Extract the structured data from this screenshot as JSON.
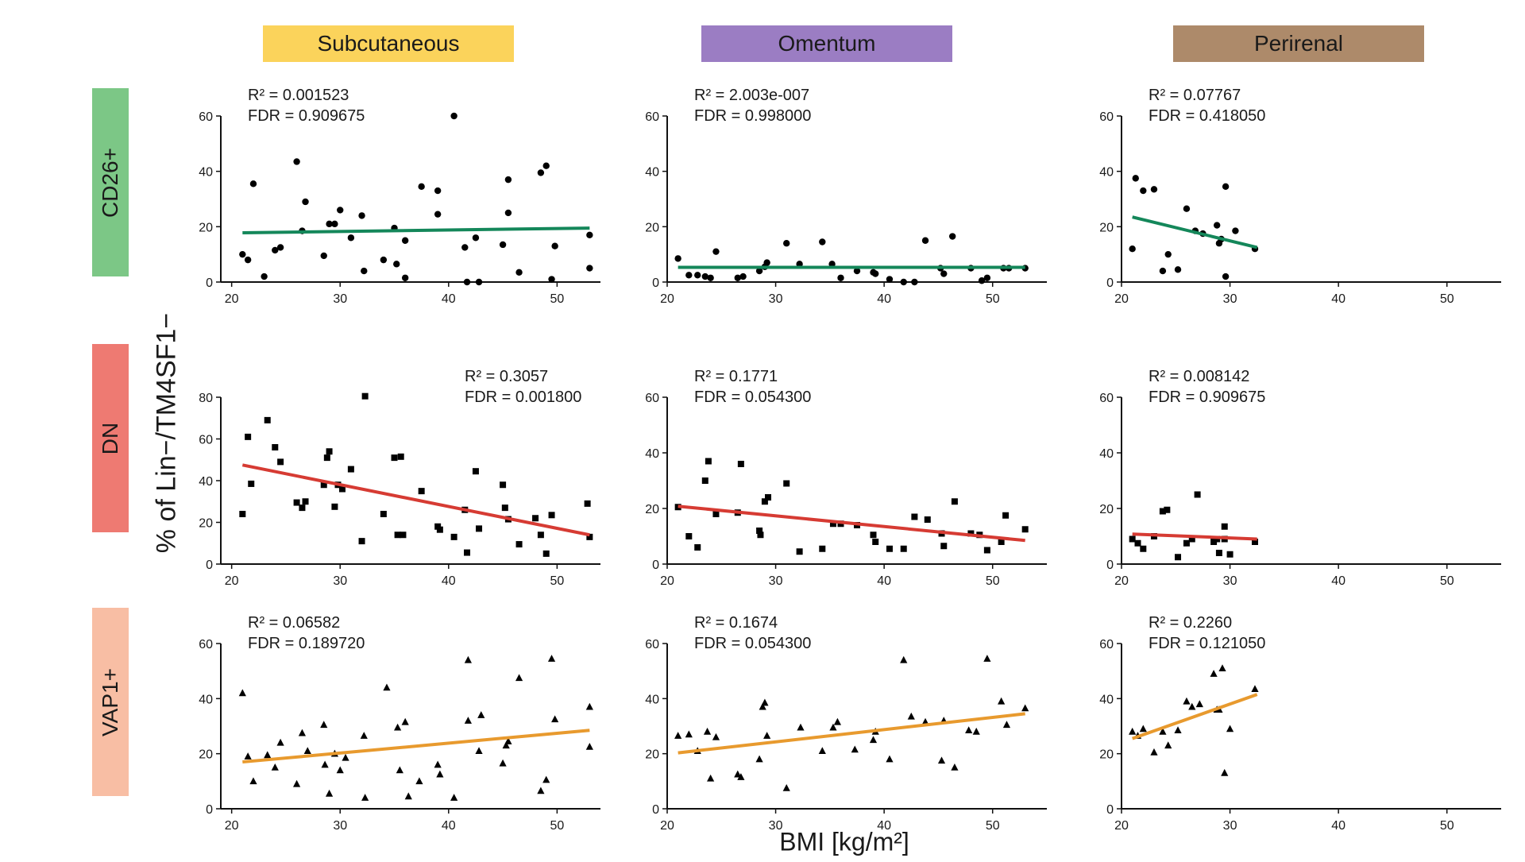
{
  "columns": [
    {
      "label": "Subcutaneous",
      "color": "#fbd35b"
    },
    {
      "label": "Omentum",
      "color": "#9b7dc3"
    },
    {
      "label": "Perirenal",
      "color": "#ad8a6a"
    }
  ],
  "rows": [
    {
      "label": "CD26+",
      "color": "#7cc786",
      "marker": "circle",
      "line_color": "#14875a"
    },
    {
      "label": "DN",
      "color": "#ee7a72",
      "marker": "square",
      "line_color": "#d63b33"
    },
    {
      "label": "VAP1+",
      "color": "#f8bea4",
      "marker": "triangle",
      "line_color": "#e89a2e"
    }
  ],
  "ylabel": "% of Lin−/TM4SF1−",
  "xlabel": "BMI [kg/m²]",
  "chart_data": [
    {
      "type": "scatter",
      "row": "CD26+",
      "column": "Subcutaneous",
      "r2": "R² = 0.001523",
      "fdr": "FDR = 0.909675",
      "stats_pos": "top-left",
      "xlim": [
        19,
        54
      ],
      "xticks": [
        20,
        30,
        40,
        50
      ],
      "ylim": [
        0,
        60
      ],
      "yticks": [
        0,
        20,
        40,
        60
      ],
      "fit": [
        [
          21,
          17.8
        ],
        [
          53,
          19.5
        ]
      ],
      "points": [
        [
          21,
          10
        ],
        [
          21.5,
          8
        ],
        [
          22,
          35.5
        ],
        [
          23,
          2
        ],
        [
          24,
          11.5
        ],
        [
          24.5,
          12.5
        ],
        [
          26,
          43.5
        ],
        [
          26.5,
          18.5
        ],
        [
          26.8,
          29
        ],
        [
          28.5,
          9.5
        ],
        [
          29,
          21
        ],
        [
          29.5,
          21
        ],
        [
          30,
          26
        ],
        [
          31,
          16
        ],
        [
          32,
          24
        ],
        [
          32.2,
          4
        ],
        [
          34,
          8
        ],
        [
          35,
          19.5
        ],
        [
          35.2,
          6.5
        ],
        [
          36,
          1.5
        ],
        [
          36,
          15
        ],
        [
          37.5,
          34.5
        ],
        [
          39,
          33
        ],
        [
          39,
          24.5
        ],
        [
          40.5,
          60
        ],
        [
          41.5,
          12.5
        ],
        [
          41.7,
          0
        ],
        [
          42.5,
          16
        ],
        [
          42.8,
          0
        ],
        [
          45,
          13.5
        ],
        [
          45.5,
          25
        ],
        [
          45.5,
          37
        ],
        [
          46.5,
          3.5
        ],
        [
          48.5,
          39.5
        ],
        [
          49,
          42
        ],
        [
          49.5,
          1
        ],
        [
          49.8,
          13
        ],
        [
          53,
          17
        ],
        [
          53,
          5
        ]
      ]
    },
    {
      "type": "scatter",
      "row": "CD26+",
      "column": "Omentum",
      "r2": "R² = 2.003e-007",
      "fdr": "FDR = 0.998000",
      "stats_pos": "top-left",
      "xlim": [
        20,
        55
      ],
      "xticks": [
        20,
        30,
        40,
        50
      ],
      "ylim": [
        0,
        60
      ],
      "yticks": [
        0,
        20,
        40,
        60
      ],
      "fit": [
        [
          21,
          5.3
        ],
        [
          53,
          5.3
        ]
      ],
      "points": [
        [
          21,
          8.5
        ],
        [
          22,
          2.5
        ],
        [
          22.8,
          2.5
        ],
        [
          23.5,
          2
        ],
        [
          24,
          1.5
        ],
        [
          24.5,
          11
        ],
        [
          26.5,
          1.5
        ],
        [
          27,
          2
        ],
        [
          28.5,
          4
        ],
        [
          29,
          5.5
        ],
        [
          29.2,
          7
        ],
        [
          31,
          14
        ],
        [
          32.2,
          6.5
        ],
        [
          34.3,
          14.5
        ],
        [
          35.2,
          6.5
        ],
        [
          36,
          1.5
        ],
        [
          37.5,
          4
        ],
        [
          39,
          3.5
        ],
        [
          39.2,
          3
        ],
        [
          40.5,
          1
        ],
        [
          41.8,
          0
        ],
        [
          42.8,
          0
        ],
        [
          43.8,
          15
        ],
        [
          45.2,
          5
        ],
        [
          45.5,
          3
        ],
        [
          46.3,
          16.5
        ],
        [
          48,
          5
        ],
        [
          49,
          0.5
        ],
        [
          49.5,
          1.5
        ],
        [
          51,
          5
        ],
        [
          51.5,
          5
        ],
        [
          53,
          5
        ]
      ]
    },
    {
      "type": "scatter",
      "row": "CD26+",
      "column": "Perirenal",
      "r2": "R² = 0.07767",
      "fdr": "FDR = 0.418050",
      "stats_pos": "top-left",
      "xlim": [
        20,
        55
      ],
      "xticks": [
        20,
        30,
        40,
        50
      ],
      "ylim": [
        0,
        60
      ],
      "yticks": [
        0,
        20,
        40,
        60
      ],
      "fit": [
        [
          21,
          23.5
        ],
        [
          32.5,
          12.5
        ]
      ],
      "points": [
        [
          21,
          12
        ],
        [
          21.3,
          37.5
        ],
        [
          22,
          33
        ],
        [
          23,
          33.5
        ],
        [
          23.8,
          4
        ],
        [
          24.3,
          10
        ],
        [
          25.2,
          4.5
        ],
        [
          26,
          26.5
        ],
        [
          26.8,
          18.5
        ],
        [
          27.5,
          17.5
        ],
        [
          28.8,
          20.5
        ],
        [
          29,
          14
        ],
        [
          29.2,
          15.5
        ],
        [
          29.6,
          34.5
        ],
        [
          29.6,
          2
        ],
        [
          30.5,
          18.5
        ],
        [
          32.3,
          12
        ]
      ]
    },
    {
      "type": "scatter",
      "row": "DN",
      "column": "Subcutaneous",
      "r2": "R² = 0.3057",
      "fdr": "FDR = 0.001800",
      "stats_pos": "top-right",
      "xlim": [
        19,
        54
      ],
      "xticks": [
        20,
        30,
        40,
        50
      ],
      "ylim": [
        0,
        80
      ],
      "yticks": [
        0,
        20,
        40,
        60,
        80
      ],
      "fit": [
        [
          21,
          47.5
        ],
        [
          53,
          14
        ]
      ],
      "points": [
        [
          21,
          24
        ],
        [
          21.5,
          61
        ],
        [
          21.8,
          38.5
        ],
        [
          23.3,
          69
        ],
        [
          24,
          56
        ],
        [
          24.5,
          49
        ],
        [
          26,
          29.5
        ],
        [
          26.5,
          27
        ],
        [
          26.8,
          30
        ],
        [
          28.5,
          38
        ],
        [
          28.8,
          51
        ],
        [
          29,
          54
        ],
        [
          29.5,
          27.5
        ],
        [
          29.8,
          38
        ],
        [
          30.2,
          36
        ],
        [
          31,
          45.5
        ],
        [
          32,
          11
        ],
        [
          32.3,
          80.5
        ],
        [
          34,
          24
        ],
        [
          35,
          51
        ],
        [
          35.3,
          14
        ],
        [
          35.6,
          51.5
        ],
        [
          35.8,
          14
        ],
        [
          37.5,
          35
        ],
        [
          39,
          18
        ],
        [
          39.2,
          16.5
        ],
        [
          40.5,
          13
        ],
        [
          41.5,
          26
        ],
        [
          41.7,
          5.5
        ],
        [
          42.5,
          44.5
        ],
        [
          42.8,
          17
        ],
        [
          45,
          38
        ],
        [
          45.2,
          27
        ],
        [
          45.5,
          21.5
        ],
        [
          46.5,
          9.5
        ],
        [
          48,
          22
        ],
        [
          48.5,
          14
        ],
        [
          49,
          5
        ],
        [
          49.5,
          23.5
        ],
        [
          52.8,
          29
        ],
        [
          53,
          13
        ]
      ]
    },
    {
      "type": "scatter",
      "row": "DN",
      "column": "Omentum",
      "r2": "R² = 0.1771",
      "fdr": "FDR = 0.054300",
      "stats_pos": "top-left",
      "xlim": [
        20,
        55
      ],
      "xticks": [
        20,
        30,
        40,
        50
      ],
      "ylim": [
        0,
        60
      ],
      "yticks": [
        0,
        20,
        40,
        60
      ],
      "fit": [
        [
          21,
          20.8
        ],
        [
          53,
          8.5
        ]
      ],
      "points": [
        [
          21,
          20.5
        ],
        [
          22,
          10
        ],
        [
          22.8,
          6
        ],
        [
          23.5,
          30
        ],
        [
          23.8,
          37
        ],
        [
          24.5,
          18
        ],
        [
          26.5,
          18.5
        ],
        [
          26.8,
          36
        ],
        [
          28.5,
          12
        ],
        [
          28.6,
          10.5
        ],
        [
          29,
          22.5
        ],
        [
          29.3,
          24
        ],
        [
          31,
          29
        ],
        [
          32.2,
          4.5
        ],
        [
          34.3,
          5.5
        ],
        [
          35.3,
          14.5
        ],
        [
          36,
          14.5
        ],
        [
          37.5,
          14
        ],
        [
          39,
          10.5
        ],
        [
          39.2,
          8
        ],
        [
          40.5,
          5.5
        ],
        [
          41.8,
          5.5
        ],
        [
          42.8,
          17
        ],
        [
          44,
          16
        ],
        [
          45.3,
          11
        ],
        [
          45.5,
          6.5
        ],
        [
          46.5,
          22.5
        ],
        [
          48,
          11
        ],
        [
          48.8,
          10.5
        ],
        [
          49.5,
          5
        ],
        [
          50.8,
          8
        ],
        [
          51.2,
          17.5
        ],
        [
          53,
          12.5
        ]
      ]
    },
    {
      "type": "scatter",
      "row": "DN",
      "column": "Perirenal",
      "r2": "R² = 0.008142",
      "fdr": "FDR = 0.909675",
      "stats_pos": "top-left",
      "xlim": [
        20,
        55
      ],
      "xticks": [
        20,
        30,
        40,
        50
      ],
      "ylim": [
        0,
        60
      ],
      "yticks": [
        0,
        20,
        40,
        60
      ],
      "fit": [
        [
          21,
          10.8
        ],
        [
          32.5,
          9
        ]
      ],
      "points": [
        [
          21,
          9
        ],
        [
          21.5,
          7.5
        ],
        [
          22,
          5.5
        ],
        [
          23,
          10
        ],
        [
          23.8,
          19
        ],
        [
          24.2,
          19.5
        ],
        [
          25.2,
          2.5
        ],
        [
          26,
          7.5
        ],
        [
          26.5,
          9
        ],
        [
          27,
          25
        ],
        [
          28.5,
          8
        ],
        [
          28.8,
          9
        ],
        [
          29,
          4
        ],
        [
          29.5,
          13.5
        ],
        [
          29.5,
          9
        ],
        [
          30,
          3.5
        ],
        [
          32.3,
          8
        ]
      ]
    },
    {
      "type": "scatter",
      "row": "VAP1+",
      "column": "Subcutaneous",
      "r2": "R² = 0.06582",
      "fdr": "FDR = 0.189720",
      "stats_pos": "top-left",
      "xlim": [
        19,
        54
      ],
      "xticks": [
        20,
        30,
        40,
        50
      ],
      "ylim": [
        0,
        60
      ],
      "yticks": [
        0,
        20,
        40,
        60
      ],
      "fit": [
        [
          21,
          17
        ],
        [
          53,
          28.5
        ]
      ],
      "points": [
        [
          21,
          42
        ],
        [
          21.5,
          19
        ],
        [
          22,
          10
        ],
        [
          23.3,
          19.5
        ],
        [
          24,
          15
        ],
        [
          24.5,
          24
        ],
        [
          26,
          9
        ],
        [
          26.5,
          27.5
        ],
        [
          27,
          21
        ],
        [
          28.5,
          30.5
        ],
        [
          28.6,
          16
        ],
        [
          29,
          5.5
        ],
        [
          29.5,
          20
        ],
        [
          30,
          14
        ],
        [
          30.5,
          18.5
        ],
        [
          32.2,
          26.5
        ],
        [
          32.3,
          4
        ],
        [
          34.3,
          44
        ],
        [
          35.3,
          29.5
        ],
        [
          35.5,
          14
        ],
        [
          36,
          31.5
        ],
        [
          36.3,
          4.5
        ],
        [
          37.3,
          10
        ],
        [
          39,
          16
        ],
        [
          39.2,
          12.5
        ],
        [
          40.5,
          4
        ],
        [
          41.8,
          54
        ],
        [
          41.8,
          32
        ],
        [
          42.8,
          21
        ],
        [
          43,
          34
        ],
        [
          45,
          16.5
        ],
        [
          45.3,
          23
        ],
        [
          45.5,
          24.5
        ],
        [
          46.5,
          47.5
        ],
        [
          48.5,
          6.5
        ],
        [
          49,
          10.5
        ],
        [
          49.5,
          54.5
        ],
        [
          49.8,
          32.5
        ],
        [
          53,
          37
        ],
        [
          53,
          22.5
        ]
      ]
    },
    {
      "type": "scatter",
      "row": "VAP1+",
      "column": "Omentum",
      "r2": "R² = 0.1674",
      "fdr": "FDR = 0.054300",
      "stats_pos": "top-left",
      "xlim": [
        20,
        55
      ],
      "xticks": [
        20,
        30,
        40,
        50
      ],
      "ylim": [
        0,
        60
      ],
      "yticks": [
        0,
        20,
        40,
        60
      ],
      "fit": [
        [
          21,
          20.3
        ],
        [
          53,
          34.5
        ]
      ],
      "points": [
        [
          21,
          26.5
        ],
        [
          22,
          27
        ],
        [
          22.8,
          21
        ],
        [
          23.7,
          28
        ],
        [
          24,
          11
        ],
        [
          24.5,
          26
        ],
        [
          26.5,
          12.5
        ],
        [
          26.8,
          11.5
        ],
        [
          28.5,
          18
        ],
        [
          28.8,
          37
        ],
        [
          29,
          38.5
        ],
        [
          29.2,
          26.5
        ],
        [
          31,
          7.5
        ],
        [
          32.3,
          29.5
        ],
        [
          34.3,
          21
        ],
        [
          35.3,
          29.5
        ],
        [
          35.7,
          31.5
        ],
        [
          37.3,
          21.5
        ],
        [
          39,
          25
        ],
        [
          39.2,
          28
        ],
        [
          40.5,
          18
        ],
        [
          41.8,
          54
        ],
        [
          42.5,
          33.5
        ],
        [
          43.8,
          31.5
        ],
        [
          45.3,
          17.5
        ],
        [
          45.5,
          32
        ],
        [
          46.5,
          15
        ],
        [
          47.8,
          28.5
        ],
        [
          48.5,
          28
        ],
        [
          49.5,
          54.5
        ],
        [
          50.8,
          39
        ],
        [
          51.3,
          30.5
        ],
        [
          53,
          36.5
        ]
      ]
    },
    {
      "type": "scatter",
      "row": "VAP1+",
      "column": "Perirenal",
      "r2": "R² = 0.2260",
      "fdr": "FDR = 0.121050",
      "stats_pos": "top-left",
      "xlim": [
        20,
        55
      ],
      "xticks": [
        20,
        30,
        40,
        50
      ],
      "ylim": [
        0,
        60
      ],
      "yticks": [
        0,
        20,
        40,
        60
      ],
      "fit": [
        [
          21,
          25.5
        ],
        [
          32.5,
          41.5
        ]
      ],
      "points": [
        [
          21,
          28
        ],
        [
          21.5,
          26.5
        ],
        [
          22,
          29
        ],
        [
          23,
          20.5
        ],
        [
          23.8,
          28
        ],
        [
          24.3,
          23
        ],
        [
          25.2,
          28.5
        ],
        [
          26,
          39
        ],
        [
          26.5,
          37
        ],
        [
          27.2,
          38
        ],
        [
          28.5,
          49
        ],
        [
          28.8,
          36
        ],
        [
          29,
          36
        ],
        [
          29.3,
          51
        ],
        [
          29.5,
          13
        ],
        [
          30,
          29
        ],
        [
          32.3,
          43.5
        ]
      ]
    }
  ]
}
